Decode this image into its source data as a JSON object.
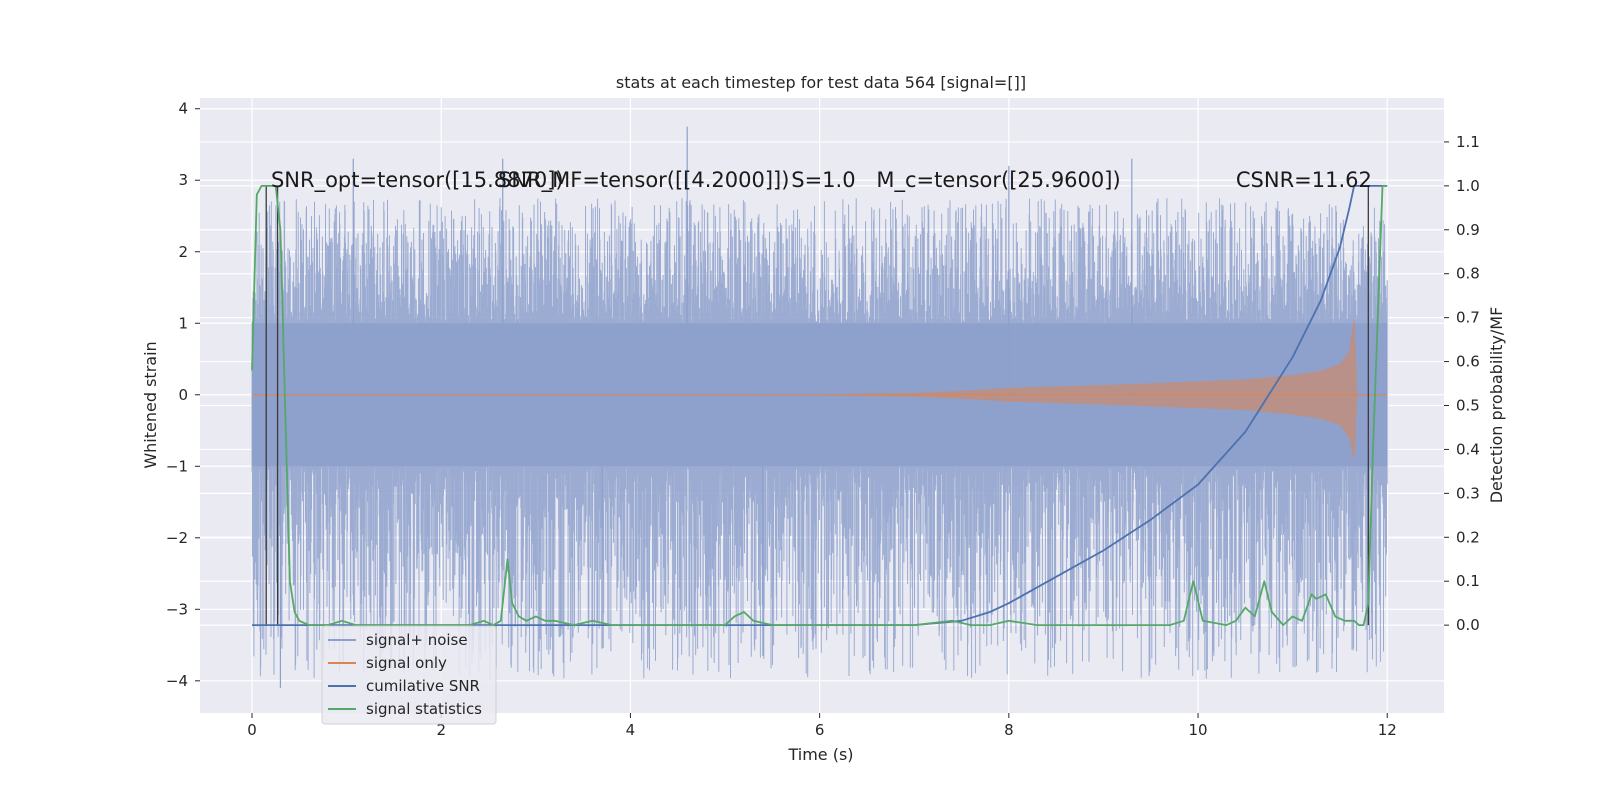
{
  "chart_data": {
    "type": "line",
    "title": "stats at each timestep for test data 564 [signal=[]]",
    "xlabel": "Time (s)",
    "ylabel_left": "Whitened strain",
    "ylabel_right": "Detection probability/MF",
    "xlim": [
      -0.55,
      12.6
    ],
    "ylim_left": [
      -4.45,
      4.15
    ],
    "ylim_right": [
      -0.2,
      1.2
    ],
    "x_ticks": [
      0,
      2,
      4,
      6,
      8,
      10,
      12
    ],
    "x_tick_labels": [
      "0",
      "2",
      "4",
      "6",
      "8",
      "10",
      "12"
    ],
    "y_left_ticks": [
      -4,
      -3,
      -2,
      -1,
      0,
      1,
      2,
      3,
      4
    ],
    "y_left_tick_labels": [
      "−4",
      "−3",
      "−2",
      "−1",
      "0",
      "1",
      "2",
      "3",
      "4"
    ],
    "y_right_ticks": [
      0.0,
      0.1,
      0.2,
      0.3,
      0.4,
      0.5,
      0.6,
      0.7,
      0.8,
      0.9,
      1.0,
      1.1
    ],
    "y_right_tick_labels": [
      "0.0",
      "0.1",
      "0.2",
      "0.3",
      "0.4",
      "0.5",
      "0.6",
      "0.7",
      "0.8",
      "0.9",
      "1.0",
      "1.1"
    ],
    "grid": true,
    "annotations": [
      {
        "text": "SNR_opt=tensor([15.8870])",
        "x": 0.2,
        "y": 3.0
      },
      {
        "text": "SNR_MF=tensor([[4.2000]])",
        "x": 2.6,
        "y": 3.0
      },
      {
        "text": "S=1.0",
        "x": 5.7,
        "y": 3.0
      },
      {
        "text": "M_c=tensor([25.9600])",
        "x": 6.6,
        "y": 3.0
      },
      {
        "text": "CSNR=11.62",
        "x": 10.4,
        "y": 3.0
      }
    ],
    "legend": {
      "location": "lower-left",
      "entries": [
        {
          "label": "signal+ noise",
          "color": "#8da0cb"
        },
        {
          "label": "signal only",
          "color": "#dd8452"
        },
        {
          "label": "cumilative SNR",
          "color": "#4c72b0"
        },
        {
          "label": "signal statistics",
          "color": "#55a868"
        }
      ]
    },
    "series": [
      {
        "name": "signal+ noise",
        "axis": "left",
        "color": "#8da0cb",
        "style": "dense_noise_band",
        "x_range": [
          0,
          12
        ],
        "core_band": [
          -1.0,
          1.0
        ],
        "typical_peaks": [
          -2.3,
          2.4
        ],
        "extremes": [
          {
            "x": 0.3,
            "y": -4.1
          },
          {
            "x": 1.07,
            "y": 3.3
          },
          {
            "x": 2.65,
            "y": 3.3
          },
          {
            "x": 3.7,
            "y": -3.55
          },
          {
            "x": 4.6,
            "y": 3.75
          },
          {
            "x": 5.4,
            "y": -3.65
          },
          {
            "x": 8.0,
            "y": 3.2
          },
          {
            "x": 9.3,
            "y": 3.3
          }
        ]
      },
      {
        "name": "signal only",
        "axis": "left",
        "color": "#dd8452",
        "style": "chirp_envelope",
        "x": [
          0,
          6.0,
          7.0,
          7.5,
          8.0,
          9.0,
          10.0,
          10.5,
          11.0,
          11.3,
          11.5,
          11.6,
          11.65,
          11.68,
          12.0
        ],
        "upper": [
          0.0,
          0.0,
          0.02,
          0.05,
          0.09,
          0.13,
          0.18,
          0.21,
          0.27,
          0.33,
          0.42,
          0.6,
          1.05,
          0.0,
          0.0
        ],
        "lower": [
          0.0,
          0.0,
          -0.02,
          -0.05,
          -0.09,
          -0.13,
          -0.18,
          -0.21,
          -0.27,
          -0.33,
          -0.42,
          -0.6,
          -0.9,
          0.0,
          0.0
        ]
      },
      {
        "name": "cumilative SNR",
        "axis": "right",
        "color": "#4c72b0",
        "x": [
          0,
          7.0,
          7.5,
          7.8,
          8.0,
          8.5,
          9.0,
          9.5,
          10.0,
          10.5,
          11.0,
          11.3,
          11.5,
          11.6,
          11.65,
          12.0
        ],
        "y": [
          0.0,
          0.0,
          0.01,
          0.03,
          0.05,
          0.11,
          0.17,
          0.24,
          0.32,
          0.44,
          0.61,
          0.74,
          0.86,
          0.95,
          1.0,
          1.0
        ]
      },
      {
        "name": "signal statistics",
        "axis": "right",
        "color": "#55a868",
        "x": [
          0.0,
          0.05,
          0.1,
          0.15,
          0.2,
          0.25,
          0.3,
          0.35,
          0.4,
          0.45,
          0.5,
          0.6,
          0.8,
          0.95,
          1.1,
          1.5,
          2.0,
          2.3,
          2.45,
          2.55,
          2.63,
          2.7,
          2.75,
          2.82,
          2.9,
          3.0,
          3.1,
          3.2,
          3.4,
          3.6,
          3.8,
          4.2,
          4.6,
          5.0,
          5.1,
          5.2,
          5.3,
          5.5,
          6.0,
          6.5,
          7.0,
          7.4,
          7.6,
          7.8,
          8.0,
          8.3,
          8.5,
          8.7,
          9.0,
          9.3,
          9.5,
          9.7,
          9.85,
          9.95,
          10.05,
          10.3,
          10.4,
          10.5,
          10.6,
          10.7,
          10.78,
          10.9,
          11.0,
          11.1,
          11.2,
          11.25,
          11.35,
          11.45,
          11.55,
          11.65,
          11.7,
          11.75,
          11.8,
          11.85,
          11.95,
          12.0
        ],
        "y": [
          0.58,
          0.98,
          1.0,
          1.0,
          1.0,
          1.0,
          0.9,
          0.5,
          0.1,
          0.03,
          0.01,
          0.0,
          0.0,
          0.01,
          0.0,
          0.0,
          0.0,
          0.0,
          0.01,
          0.0,
          0.01,
          0.15,
          0.05,
          0.02,
          0.01,
          0.02,
          0.01,
          0.01,
          0.0,
          0.01,
          0.0,
          0.0,
          0.0,
          0.0,
          0.02,
          0.03,
          0.01,
          0.0,
          0.0,
          0.0,
          0.0,
          0.01,
          0.0,
          0.0,
          0.01,
          0.0,
          0.0,
          0.0,
          0.0,
          0.0,
          0.0,
          0.0,
          0.01,
          0.1,
          0.01,
          0.0,
          0.01,
          0.04,
          0.02,
          0.1,
          0.03,
          0.0,
          0.02,
          0.01,
          0.07,
          0.06,
          0.07,
          0.02,
          0.01,
          0.01,
          0.0,
          0.0,
          0.05,
          0.4,
          1.0,
          1.0
        ]
      }
    ],
    "vertical_lines": [
      0.15,
      0.27,
      11.8
    ]
  }
}
